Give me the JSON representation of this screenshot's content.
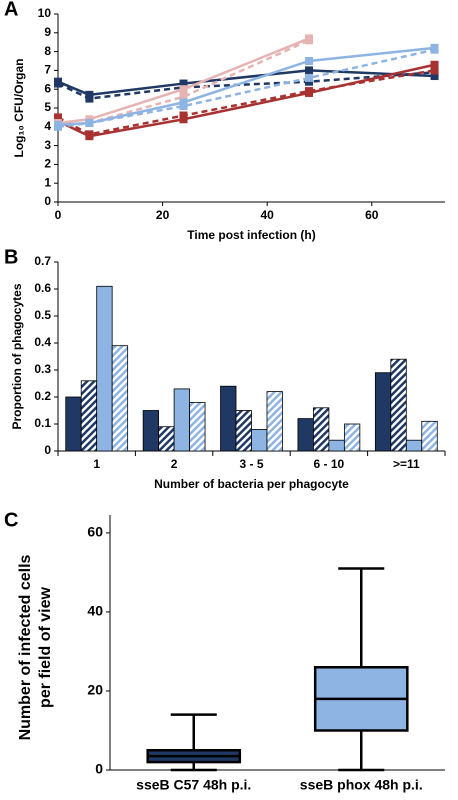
{
  "chart_data": [
    {
      "type": "line",
      "panel": "A",
      "ylabel": "Log₁₀ CFU/Organ",
      "xlabel": "Time post infection (h)",
      "xlim": [
        0,
        74
      ],
      "xticks": [
        0,
        20,
        40,
        60
      ],
      "ylim": [
        0,
        10
      ],
      "yticks": [
        0,
        1,
        2,
        3,
        4,
        5,
        6,
        7,
        8,
        9,
        10
      ],
      "x": [
        0,
        6,
        24,
        48,
        72
      ],
      "series": [
        {
          "color": "#1f3864",
          "dashed": false,
          "values": [
            6.4,
            5.7,
            6.3,
            7.0,
            6.7
          ]
        },
        {
          "color": "#1f3864",
          "dashed": true,
          "values": [
            6.3,
            5.5,
            6.1,
            6.4,
            6.9
          ]
        },
        {
          "color": "#a83232",
          "dashed": false,
          "values": [
            4.3,
            3.5,
            4.4,
            5.8,
            7.3
          ]
        },
        {
          "color": "#a83232",
          "dashed": true,
          "values": [
            4.5,
            3.6,
            4.6,
            5.9,
            7.0
          ]
        },
        {
          "color": "#e6b3b3",
          "dashed": false,
          "values": [
            4.2,
            4.4,
            6.0,
            8.7,
            null
          ]
        },
        {
          "color": "#e6b3b3",
          "dashed": true,
          "values": [
            4.1,
            4.2,
            5.6,
            8.6,
            null
          ]
        },
        {
          "color": "#8eb4e3",
          "dashed": false,
          "values": [
            4.1,
            4.2,
            5.3,
            7.5,
            8.2
          ]
        },
        {
          "color": "#8eb4e3",
          "dashed": true,
          "values": [
            4.0,
            4.2,
            5.1,
            6.6,
            8.1
          ]
        }
      ]
    },
    {
      "type": "bar",
      "panel": "B",
      "ylabel": "Proportion of phagocytes",
      "xlabel": "Number of bacteria per phagocyte",
      "ylim": [
        0,
        0.7
      ],
      "yticks": [
        0,
        0.1,
        0.2,
        0.3,
        0.4,
        0.5,
        0.6,
        0.7
      ],
      "categories": [
        "1",
        "2",
        "3 - 5",
        "6 - 10",
        ">=11"
      ],
      "series": [
        {
          "color": "#1f3864",
          "hatched": false,
          "values": [
            0.2,
            0.15,
            0.24,
            0.12,
            0.29
          ]
        },
        {
          "color": "#1f3864",
          "hatched": true,
          "values": [
            0.26,
            0.09,
            0.15,
            0.16,
            0.34
          ]
        },
        {
          "color": "#8eb4e3",
          "hatched": false,
          "values": [
            0.61,
            0.23,
            0.08,
            0.04,
            0.04
          ]
        },
        {
          "color": "#8eb4e3",
          "hatched": true,
          "values": [
            0.39,
            0.18,
            0.22,
            0.1,
            0.11
          ]
        }
      ]
    },
    {
      "type": "box",
      "panel": "C",
      "ylabel": [
        "Number of infected cells",
        "per field of view"
      ],
      "ylim": [
        0,
        62
      ],
      "yticks": [
        0,
        20,
        40,
        60
      ],
      "categories": [
        "sseB C57 48h p.i.",
        "sseB phox 48h p.i."
      ],
      "colors": [
        "#1f3864",
        "#8eb4e3"
      ],
      "min": [
        0,
        0
      ],
      "q1": [
        2,
        10
      ],
      "median": [
        3.5,
        18
      ],
      "q3": [
        5,
        26
      ],
      "max": [
        14,
        51
      ]
    }
  ]
}
